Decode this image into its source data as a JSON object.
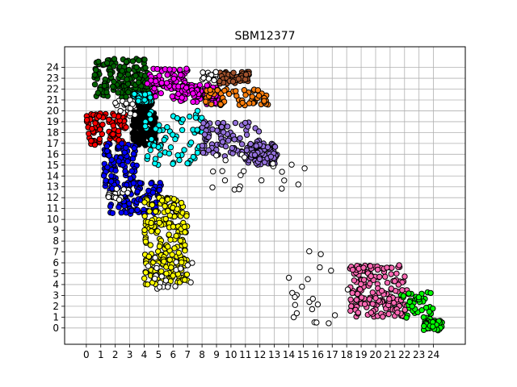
{
  "chart_data": {
    "type": "scatter",
    "title": "SBM12377",
    "xlabel": "",
    "ylabel": "",
    "xlim": [
      -1.5,
      26.2
    ],
    "ylim": [
      -1.5,
      25.9
    ],
    "x_ticks": [
      "0",
      "1",
      "2",
      "3",
      "4",
      "5",
      "6",
      "7",
      "8",
      "9",
      "10",
      "11",
      "12",
      "13",
      "14",
      "15",
      "16",
      "17",
      "18",
      "19",
      "20",
      "21",
      "22",
      "23",
      "24"
    ],
    "y_ticks": [
      "0",
      "1",
      "2",
      "3",
      "4",
      "5",
      "6",
      "7",
      "8",
      "9",
      "10",
      "11",
      "12",
      "13",
      "14",
      "15",
      "16",
      "17",
      "18",
      "19",
      "20",
      "21",
      "22",
      "23",
      "24"
    ],
    "grid": true,
    "legend": "none",
    "marker_edge_color": "#000000",
    "clusters": [
      {
        "color": "#000000",
        "count": 150,
        "blobs": [
          [
            3.2,
            4.8,
            16.8,
            20.8
          ]
        ]
      },
      {
        "color": "#ff0000",
        "count": 90,
        "blobs": [
          [
            0.0,
            2.8,
            16.8,
            19.8
          ]
        ]
      },
      {
        "color": "#006400",
        "count": 150,
        "blobs": [
          [
            0.5,
            4.3,
            21.2,
            24.8
          ]
        ]
      },
      {
        "color": "#ff00ff",
        "count": 180,
        "blobs": [
          [
            4.2,
            7.0,
            21.0,
            24.0
          ],
          [
            6.5,
            9.2,
            20.6,
            22.4
          ]
        ]
      },
      {
        "color": "#00ffff",
        "count": 150,
        "blobs": [
          [
            4.0,
            8.0,
            15.0,
            20.0
          ],
          [
            3.2,
            4.5,
            20.8,
            21.6
          ]
        ]
      },
      {
        "color": "#0000ff",
        "count": 200,
        "blobs": [
          [
            1.2,
            3.5,
            13.0,
            17.0
          ],
          [
            1.6,
            5.2,
            10.5,
            13.5
          ]
        ]
      },
      {
        "color": "#ffff00",
        "count": 220,
        "blobs": [
          [
            4.0,
            7.0,
            4.0,
            12.0
          ]
        ]
      },
      {
        "color": "#9370db",
        "count": 170,
        "blobs": [
          [
            8.0,
            12.0,
            15.8,
            19.0
          ],
          [
            11.0,
            13.2,
            15.0,
            17.0
          ]
        ]
      },
      {
        "color": "#a0522d",
        "count": 60,
        "blobs": [
          [
            9.0,
            11.3,
            22.5,
            23.6
          ]
        ]
      },
      {
        "color": "#ff7f0e",
        "count": 60,
        "blobs": [
          [
            8.2,
            12.6,
            20.5,
            22.0
          ]
        ]
      },
      {
        "color": "#ff69b4",
        "count": 170,
        "blobs": [
          [
            18.2,
            22.2,
            1.0,
            5.8
          ]
        ]
      },
      {
        "color": "#00ff00",
        "count": 80,
        "blobs": [
          [
            21.7,
            24.0,
            0.8,
            3.3
          ],
          [
            23.3,
            24.6,
            -0.3,
            0.8
          ]
        ]
      },
      {
        "color": "#ffffff",
        "count": 130,
        "blobs": [
          [
            8.5,
            15.2,
            12.5,
            16.0
          ],
          [
            14.0,
            18.5,
            0.3,
            7.5
          ],
          [
            4.0,
            7.5,
            3.5,
            6.5
          ],
          [
            1.5,
            3.0,
            11.8,
            13.0
          ],
          [
            8.0,
            9.0,
            22.8,
            23.6
          ],
          [
            2.0,
            3.5,
            19.5,
            21.0
          ]
        ]
      }
    ]
  }
}
